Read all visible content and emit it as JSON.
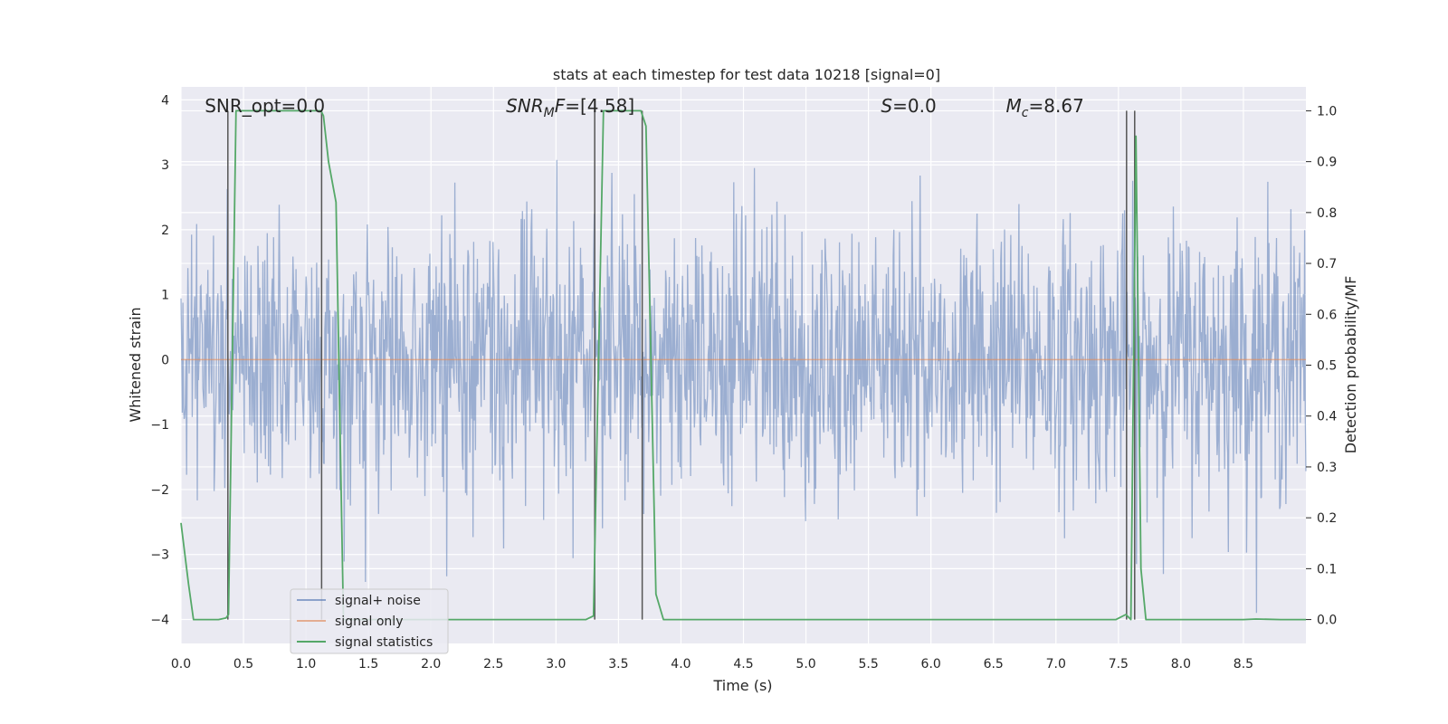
{
  "chart_data": {
    "type": "line",
    "title": "stats at each timestep for test data 10218 [signal=0]",
    "xlabel": "Time (s)",
    "ylabel": "Whitened strain",
    "y2label": "Detection probability/MF",
    "xlim": [
      0.0,
      9.0
    ],
    "ylim": [
      -4.37,
      4.2
    ],
    "y2lim": [
      -0.047,
      1.047
    ],
    "xticks": [
      0.0,
      0.5,
      1.0,
      1.5,
      2.0,
      2.5,
      3.0,
      3.5,
      4.0,
      4.5,
      5.0,
      5.5,
      6.0,
      6.5,
      7.0,
      7.5,
      8.0,
      8.5
    ],
    "xtick_labels": [
      "0.0",
      "0.5",
      "1.0",
      "1.5",
      "2.0",
      "2.5",
      "3.0",
      "3.5",
      "4.0",
      "4.5",
      "5.0",
      "5.5",
      "6.0",
      "6.5",
      "7.0",
      "7.5",
      "8.0",
      "8.5"
    ],
    "yticks": [
      -4,
      -3,
      -2,
      -1,
      0,
      1,
      2,
      3,
      4
    ],
    "ytick_labels": [
      "−4",
      "−3",
      "−2",
      "−1",
      "0",
      "1",
      "2",
      "3",
      "4"
    ],
    "y2ticks": [
      0.0,
      0.1,
      0.2,
      0.3,
      0.4,
      0.5,
      0.6,
      0.7,
      0.8,
      0.9,
      1.0
    ],
    "y2tick_labels": [
      "0.0",
      "0.1",
      "0.2",
      "0.3",
      "0.4",
      "0.5",
      "0.6",
      "0.7",
      "0.8",
      "0.9",
      "1.0"
    ],
    "grid": true,
    "legend_position": "lower-left",
    "annotations": [
      {
        "text": "SNR_opt=0.0",
        "x": 0.19
      },
      {
        "text": "SNR_MF=[4.58]",
        "x": 2.6
      },
      {
        "text": "S=0.0",
        "x": 5.6
      },
      {
        "text": "M_c=8.67",
        "x": 6.6
      }
    ],
    "series": [
      {
        "name": "signal+ noise",
        "color": "#4c72b0",
        "kind": "noise",
        "samples": 1800,
        "typical_std": 1.05,
        "min": -3.9,
        "max": 3.85
      },
      {
        "name": "signal only",
        "color": "#dd8452",
        "kind": "constant",
        "x": [
          0.0,
          9.0
        ],
        "y": [
          0.0,
          0.0
        ]
      },
      {
        "name": "signal statistics",
        "color": "#55a868",
        "axis": "right",
        "x": [
          0.0,
          0.06,
          0.1,
          0.3,
          0.36,
          0.38,
          0.44,
          1.12,
          1.14,
          1.18,
          1.24,
          1.3,
          1.6,
          3.24,
          3.3,
          3.38,
          3.68,
          3.72,
          3.8,
          3.86,
          4.0,
          7.48,
          7.56,
          7.6,
          7.64,
          7.68,
          7.72,
          7.8,
          8.5,
          8.6,
          8.8,
          9.0
        ],
        "y": [
          0.19,
          0.07,
          0.0,
          0.0,
          0.003,
          0.01,
          1.0,
          1.0,
          0.99,
          0.9,
          0.82,
          0.0,
          0.0,
          0.0,
          0.007,
          1.0,
          1.0,
          0.97,
          0.05,
          0.0,
          0.0,
          0.0,
          0.01,
          0.0,
          0.95,
          0.1,
          0.0,
          0.0,
          0.0,
          0.001,
          0.0,
          0.0
        ]
      }
    ],
    "event_lines": {
      "color": "#555555",
      "x": [
        0.375,
        1.125,
        3.31,
        3.69,
        7.565,
        7.63
      ],
      "y_from": 0.0,
      "y_to": 1.0
    }
  }
}
